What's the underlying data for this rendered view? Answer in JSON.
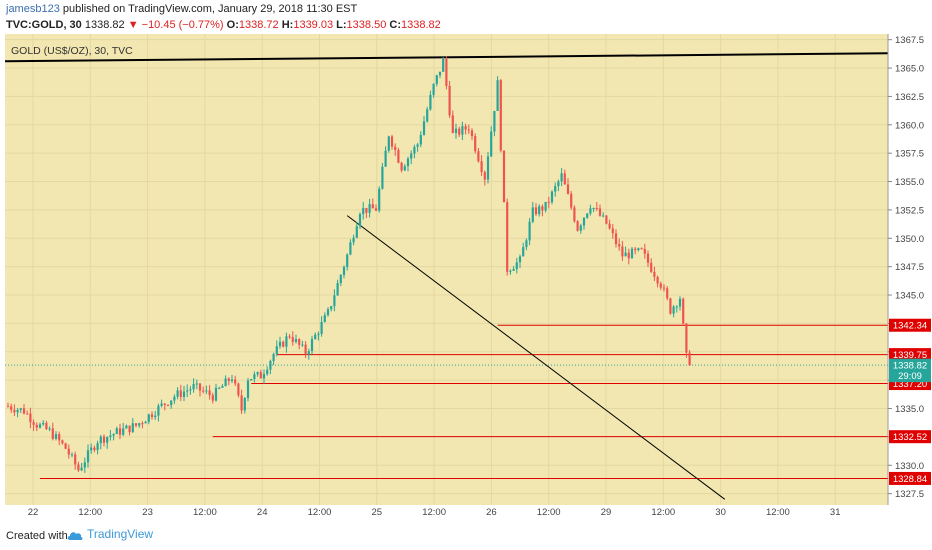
{
  "header": {
    "username": "jamesb123",
    "published_text": "published on TradingView.com, January 29, 2018 11:30 EST",
    "symbol": "TVC:GOLD, 30",
    "last_price": "1338.82",
    "change": "−10.45 (−0.77%)",
    "open_label": "O:",
    "open": "1338.72",
    "high_label": "H:",
    "high": "1339.03",
    "low_label": "L:",
    "low": "1338.50",
    "close_label": "C:",
    "close": "1338.82"
  },
  "footer": {
    "created_with": "Created with",
    "brand": "TradingView"
  },
  "chart_data": {
    "type": "candlestick",
    "title": "GOLD (US$/OZ), 30, TVC",
    "y_axis": {
      "position": "right",
      "range": [
        1326.5,
        1368.0
      ],
      "ticks": [
        1327.5,
        1330.0,
        1332.5,
        1335.0,
        1337.5,
        1340.0,
        1342.5,
        1345.0,
        1347.5,
        1350.0,
        1352.5,
        1355.0,
        1357.5,
        1360.0,
        1362.5,
        1365.0,
        1367.5
      ]
    },
    "x_axis": {
      "ticks": [
        "22",
        "12:00",
        "23",
        "12:00",
        "24",
        "12:00",
        "25",
        "12:00",
        "26",
        "12:00",
        "29",
        "12:00",
        "30",
        "12:00",
        "31"
      ]
    },
    "grid": true,
    "colors": {
      "background": "#f3e7b1",
      "up": "#26a69a",
      "down": "#ef5350",
      "level_line": "#e00000",
      "trend_line": "#000000",
      "price_label": "#e00000"
    },
    "close_path_points": [
      [
        0,
        1335.2
      ],
      [
        5,
        1334.8
      ],
      [
        9,
        1333.6
      ],
      [
        13,
        1333.0
      ],
      [
        18,
        1331.5
      ],
      [
        22,
        1329.6
      ],
      [
        28,
        1332.2
      ],
      [
        34,
        1332.9
      ],
      [
        40,
        1333.5
      ],
      [
        45,
        1334.6
      ],
      [
        52,
        1336.1
      ],
      [
        58,
        1336.9
      ],
      [
        64,
        1336.1
      ],
      [
        70,
        1337.8
      ],
      [
        73,
        1334.9
      ],
      [
        75,
        1337.7
      ],
      [
        79,
        1337.9
      ],
      [
        83,
        1339.8
      ],
      [
        88,
        1341.5
      ],
      [
        93,
        1339.9
      ],
      [
        100,
        1343.4
      ],
      [
        106,
        1348.5
      ],
      [
        110,
        1352.5
      ],
      [
        115,
        1352.6
      ],
      [
        119,
        1359.2
      ],
      [
        123,
        1356.3
      ],
      [
        128,
        1358.3
      ],
      [
        133,
        1363.4
      ],
      [
        136,
        1365.6
      ],
      [
        139,
        1359.1
      ],
      [
        144,
        1359.8
      ],
      [
        149,
        1355.4
      ],
      [
        153,
        1363.6
      ],
      [
        156,
        1347.3
      ],
      [
        160,
        1348.0
      ],
      [
        164,
        1352.3
      ],
      [
        168,
        1352.8
      ],
      [
        173,
        1355.5
      ],
      [
        178,
        1350.9
      ],
      [
        182,
        1353.0
      ],
      [
        187,
        1351.3
      ],
      [
        192,
        1348.5
      ],
      [
        198,
        1348.8
      ],
      [
        204,
        1346.0
      ],
      [
        207,
        1343.7
      ],
      [
        210,
        1344.8
      ],
      [
        212,
        1339.5
      ],
      [
        213.5,
        1338.82
      ]
    ],
    "levels": [
      {
        "value": 1342.34,
        "label": "1342.34",
        "start_index": 153
      },
      {
        "value": 1339.75,
        "label": "1339.75",
        "start_index": 84
      },
      {
        "value": 1337.2,
        "label": "1337.20",
        "start_index": 76
      },
      {
        "value": 1332.52,
        "label": "1332.52",
        "start_index": 64
      },
      {
        "value": 1328.84,
        "label": "1328.84",
        "start_index": 10
      }
    ],
    "current_price": {
      "value": 1338.82,
      "label": "1338.82"
    },
    "timer": {
      "value": 1337.9,
      "label": "29:09"
    },
    "trend_lines": [
      {
        "name": "resistance",
        "from": [
          0,
          1365.6
        ],
        "to": [
          282,
          1366.3
        ]
      },
      {
        "name": "descending",
        "from": [
          106,
          1352.0
        ],
        "to": [
          224,
          1327.0
        ]
      }
    ]
  }
}
